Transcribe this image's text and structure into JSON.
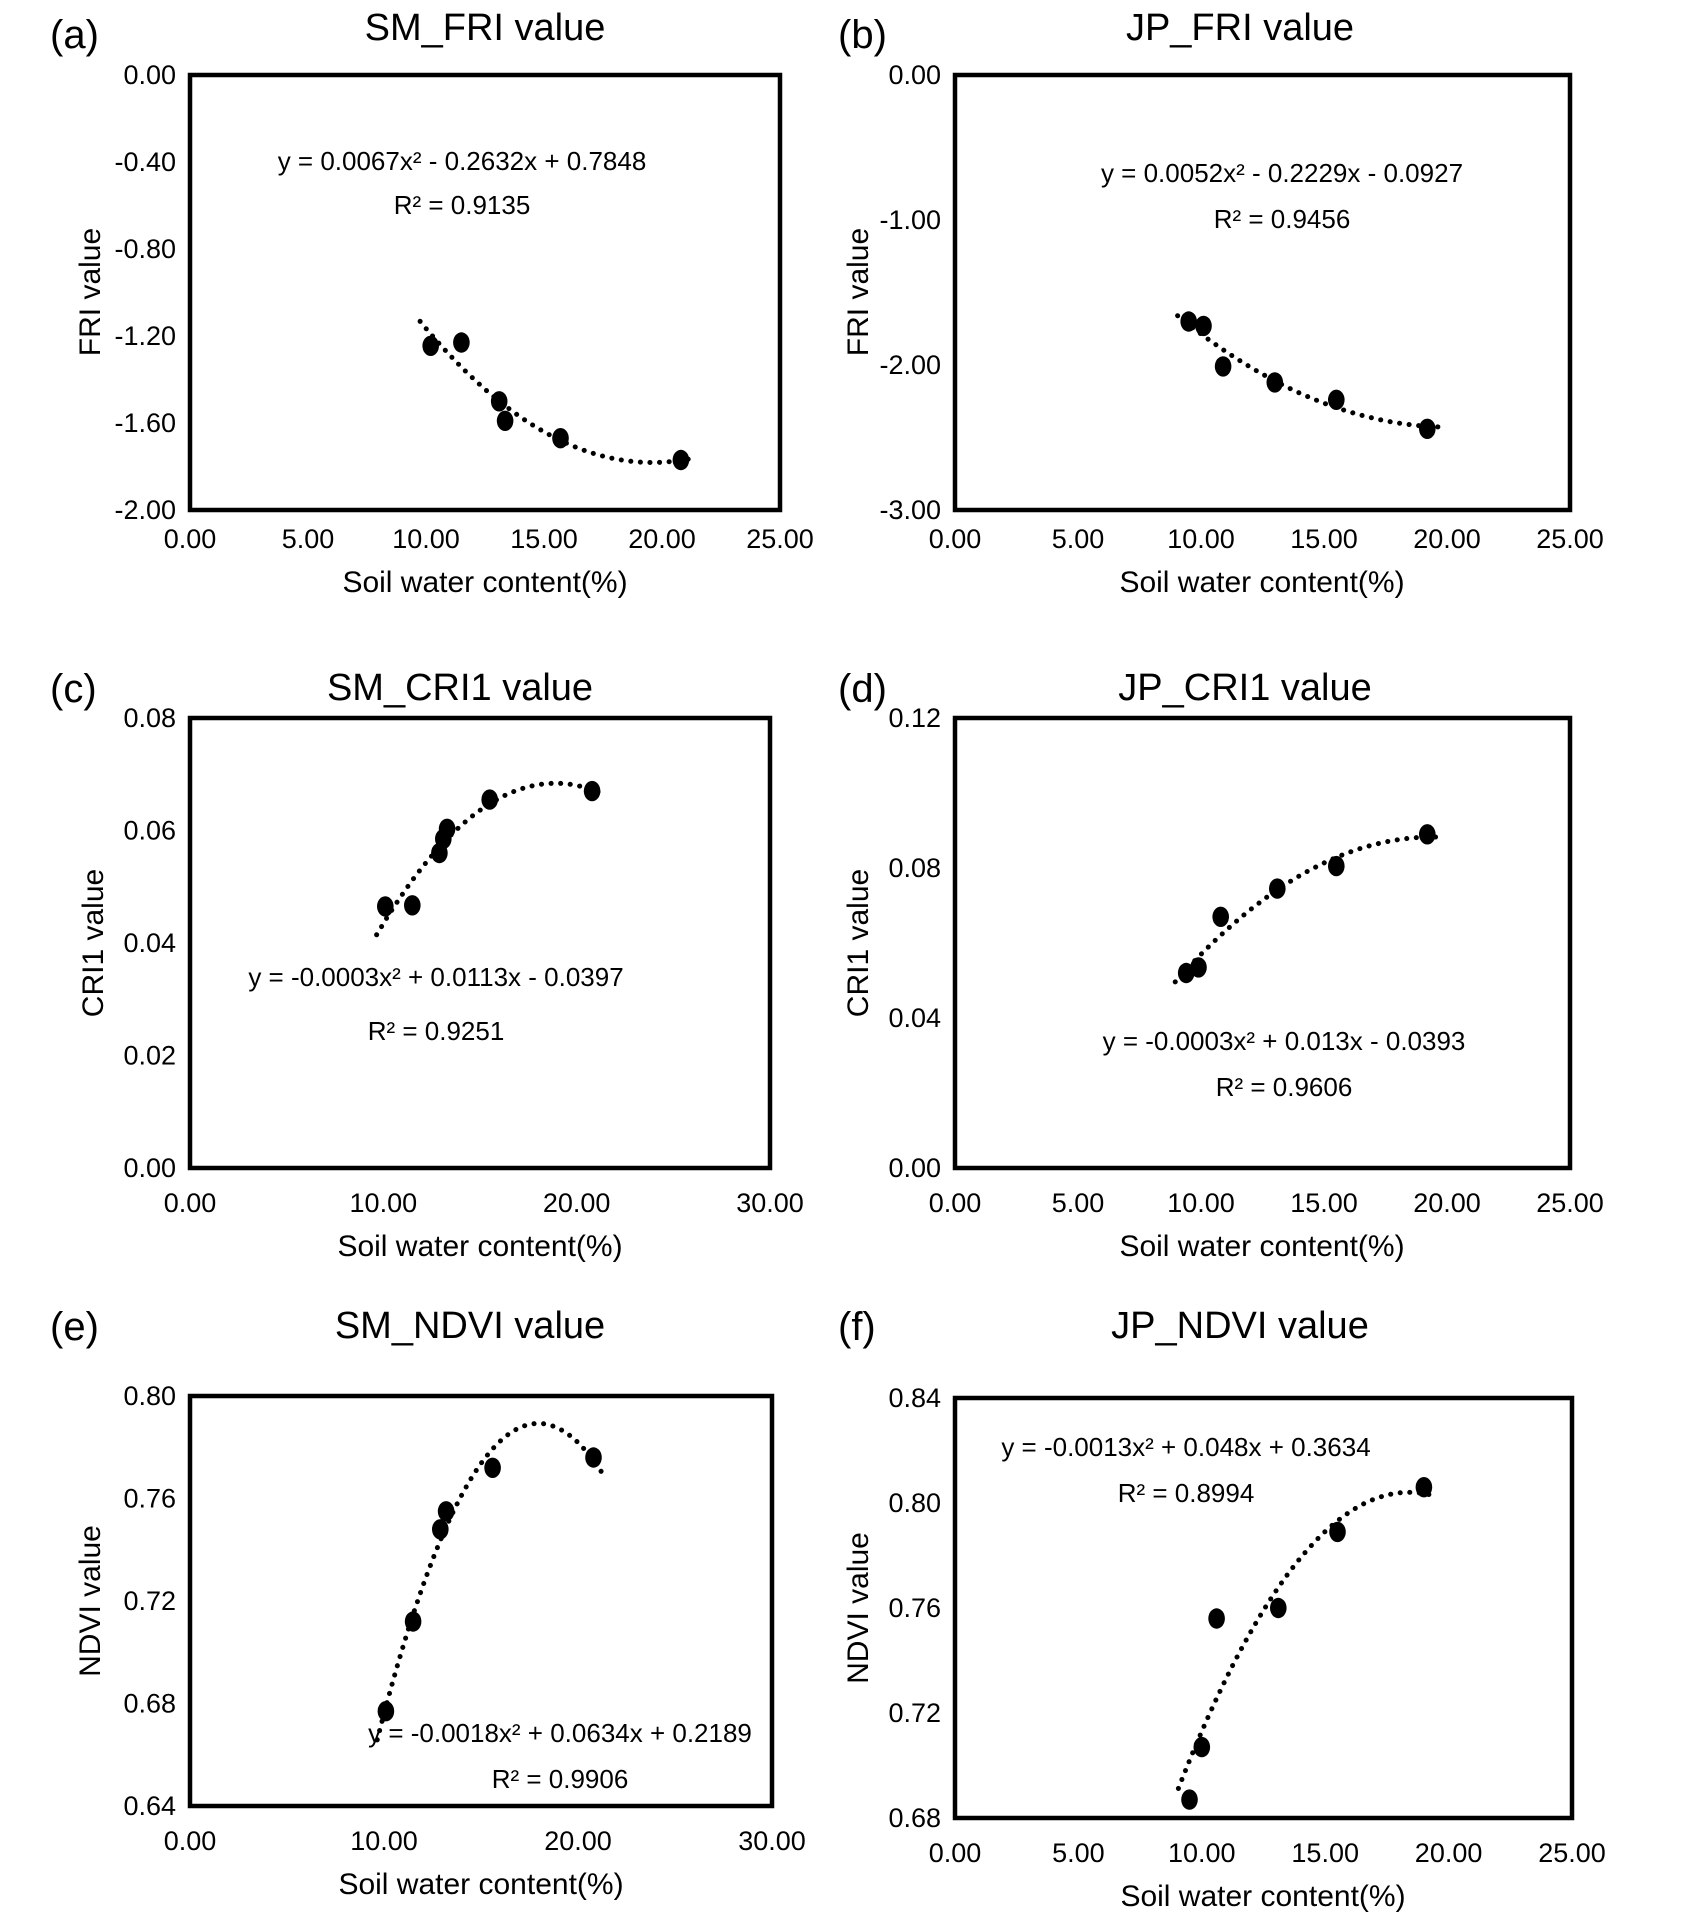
{
  "colors": {
    "marker": "#000000",
    "text": "#000000",
    "background": "#ffffff",
    "frame": "#000000"
  },
  "chart_data": [
    {
      "panel_label": "(a)",
      "type": "scatter",
      "title": "SM_FRI value",
      "xlabel": "Soil water content(%)",
      "ylabel": "FRI value",
      "equation": "y = 0.0067x² - 0.2632x + 0.7848",
      "r_squared": "R² = 0.9135",
      "xlim": [
        0,
        25
      ],
      "ylim": [
        -2.0,
        0.0
      ],
      "xticks": [
        0,
        5,
        10,
        15,
        20,
        25
      ],
      "yticks": [
        0,
        -0.4,
        -0.8,
        -1.2,
        -1.6,
        -2.0
      ],
      "xtick_labels": [
        "0.00",
        "5.00",
        "10.00",
        "15.00",
        "20.00",
        "25.00"
      ],
      "ytick_labels": [
        "0.00",
        "-0.40",
        "-0.80",
        "-1.20",
        "-1.60",
        "-2.00"
      ],
      "grid": false,
      "legend": "none",
      "trend": "quadratic-dotted",
      "points": [
        [
          10.2,
          -1.245
        ],
        [
          11.5,
          -1.23
        ],
        [
          13.1,
          -1.5
        ],
        [
          13.35,
          -1.59
        ],
        [
          15.7,
          -1.67
        ],
        [
          20.8,
          -1.77
        ]
      ]
    },
    {
      "panel_label": "(b)",
      "type": "scatter",
      "title": "JP_FRI value",
      "xlabel": "Soil water content(%)",
      "ylabel": "FRI value",
      "equation": "y = 0.0052x² - 0.2229x - 0.0927",
      "r_squared": "R² = 0.9456",
      "xlim": [
        0,
        25
      ],
      "ylim": [
        -3.0,
        0.0
      ],
      "xticks": [
        0,
        5,
        10,
        15,
        20,
        25
      ],
      "yticks": [
        0,
        -1.0,
        -2.0,
        -3.0
      ],
      "xtick_labels": [
        "0.00",
        "5.00",
        "10.00",
        "15.00",
        "20.00",
        "25.00"
      ],
      "ytick_labels": [
        "0.00",
        "-1.00",
        "-2.00",
        "-3.00"
      ],
      "grid": false,
      "legend": "none",
      "trend": "quadratic-dotted",
      "points": [
        [
          9.5,
          -1.7
        ],
        [
          10.1,
          -1.73
        ],
        [
          10.9,
          -2.01
        ],
        [
          13.0,
          -2.12
        ],
        [
          15.5,
          -2.24
        ],
        [
          19.2,
          -2.44
        ]
      ]
    },
    {
      "panel_label": "(c)",
      "type": "scatter",
      "title": "SM_CRI1 value",
      "xlabel": "Soil water content(%)",
      "ylabel": "CRI1 value",
      "equation": "y = -0.0003x² + 0.0113x - 0.0397",
      "r_squared": "R² = 0.9251",
      "xlim": [
        0,
        30
      ],
      "ylim": [
        0.0,
        0.08
      ],
      "xticks": [
        0,
        10,
        20,
        30
      ],
      "yticks": [
        0.08,
        0.06,
        0.04,
        0.02,
        0.0
      ],
      "xtick_labels": [
        "0.00",
        "10.00",
        "20.00",
        "30.00"
      ],
      "ytick_labels": [
        "0.08",
        "0.06",
        "0.04",
        "0.02",
        "0.00"
      ],
      "grid": false,
      "legend": "none",
      "trend": "quadratic-dotted",
      "points": [
        [
          10.1,
          0.0465
        ],
        [
          11.5,
          0.0467
        ],
        [
          12.9,
          0.056
        ],
        [
          13.1,
          0.0585
        ],
        [
          13.3,
          0.0603
        ],
        [
          15.5,
          0.0655
        ],
        [
          20.8,
          0.067
        ]
      ]
    },
    {
      "panel_label": "(d)",
      "type": "scatter",
      "title": "JP_CRI1 value",
      "xlabel": "Soil water content(%)",
      "ylabel": "CRI1 value",
      "equation": "y = -0.0003x² + 0.013x - 0.0393",
      "r_squared": "R² = 0.9606",
      "xlim": [
        0,
        25
      ],
      "ylim": [
        0.0,
        0.12
      ],
      "xticks": [
        0,
        5,
        10,
        15,
        20,
        25
      ],
      "yticks": [
        0.12,
        0.08,
        0.04,
        0.0
      ],
      "xtick_labels": [
        "0.00",
        "5.00",
        "10.00",
        "15.00",
        "20.00",
        "25.00"
      ],
      "ytick_labels": [
        "0.12",
        "0.08",
        "0.04",
        "0.00"
      ],
      "grid": false,
      "legend": "none",
      "trend": "quadratic-dotted",
      "points": [
        [
          9.4,
          0.052
        ],
        [
          9.9,
          0.0535
        ],
        [
          10.8,
          0.067
        ],
        [
          13.1,
          0.0745
        ],
        [
          15.5,
          0.0805
        ],
        [
          19.2,
          0.089
        ]
      ]
    },
    {
      "panel_label": "(e)",
      "type": "scatter",
      "title": "SM_NDVI value",
      "xlabel": "Soil water content(%)",
      "ylabel": "NDVI value",
      "equation": "y = -0.0018x² + 0.0634x + 0.2189",
      "r_squared": "R² = 0.9906",
      "xlim": [
        0,
        30
      ],
      "ylim": [
        0.64,
        0.8
      ],
      "xticks": [
        0,
        10,
        20,
        30
      ],
      "yticks": [
        0.8,
        0.76,
        0.72,
        0.68,
        0.64
      ],
      "xtick_labels": [
        "0.00",
        "10.00",
        "20.00",
        "30.00"
      ],
      "ytick_labels": [
        "0.80",
        "0.76",
        "0.72",
        "0.68",
        "0.64"
      ],
      "grid": false,
      "legend": "none",
      "trend": "quadratic-dotted",
      "points": [
        [
          10.1,
          0.677
        ],
        [
          11.5,
          0.712
        ],
        [
          12.9,
          0.748
        ],
        [
          13.2,
          0.755
        ],
        [
          15.6,
          0.772
        ],
        [
          20.8,
          0.776
        ]
      ]
    },
    {
      "panel_label": "(f)",
      "type": "scatter",
      "title": "JP_NDVI value",
      "xlabel": "Soil water content(%)",
      "ylabel": "NDVI value",
      "equation": "y = -0.0013x² + 0.048x + 0.3634",
      "r_squared": "R² = 0.8994",
      "xlim": [
        0,
        25
      ],
      "ylim": [
        0.68,
        0.84
      ],
      "xticks": [
        0,
        5,
        10,
        15,
        20,
        25
      ],
      "yticks": [
        0.84,
        0.8,
        0.76,
        0.72,
        0.68
      ],
      "xtick_labels": [
        "0.00",
        "5.00",
        "10.00",
        "15.00",
        "20.00",
        "25.00"
      ],
      "ytick_labels": [
        "0.84",
        "0.80",
        "0.76",
        "0.72",
        "0.68"
      ],
      "grid": false,
      "legend": "none",
      "trend": "quadratic-dotted",
      "points": [
        [
          9.5,
          0.687
        ],
        [
          10.0,
          0.707
        ],
        [
          10.6,
          0.756
        ],
        [
          13.1,
          0.76
        ],
        [
          15.5,
          0.789
        ],
        [
          19.0,
          0.806
        ]
      ]
    }
  ]
}
